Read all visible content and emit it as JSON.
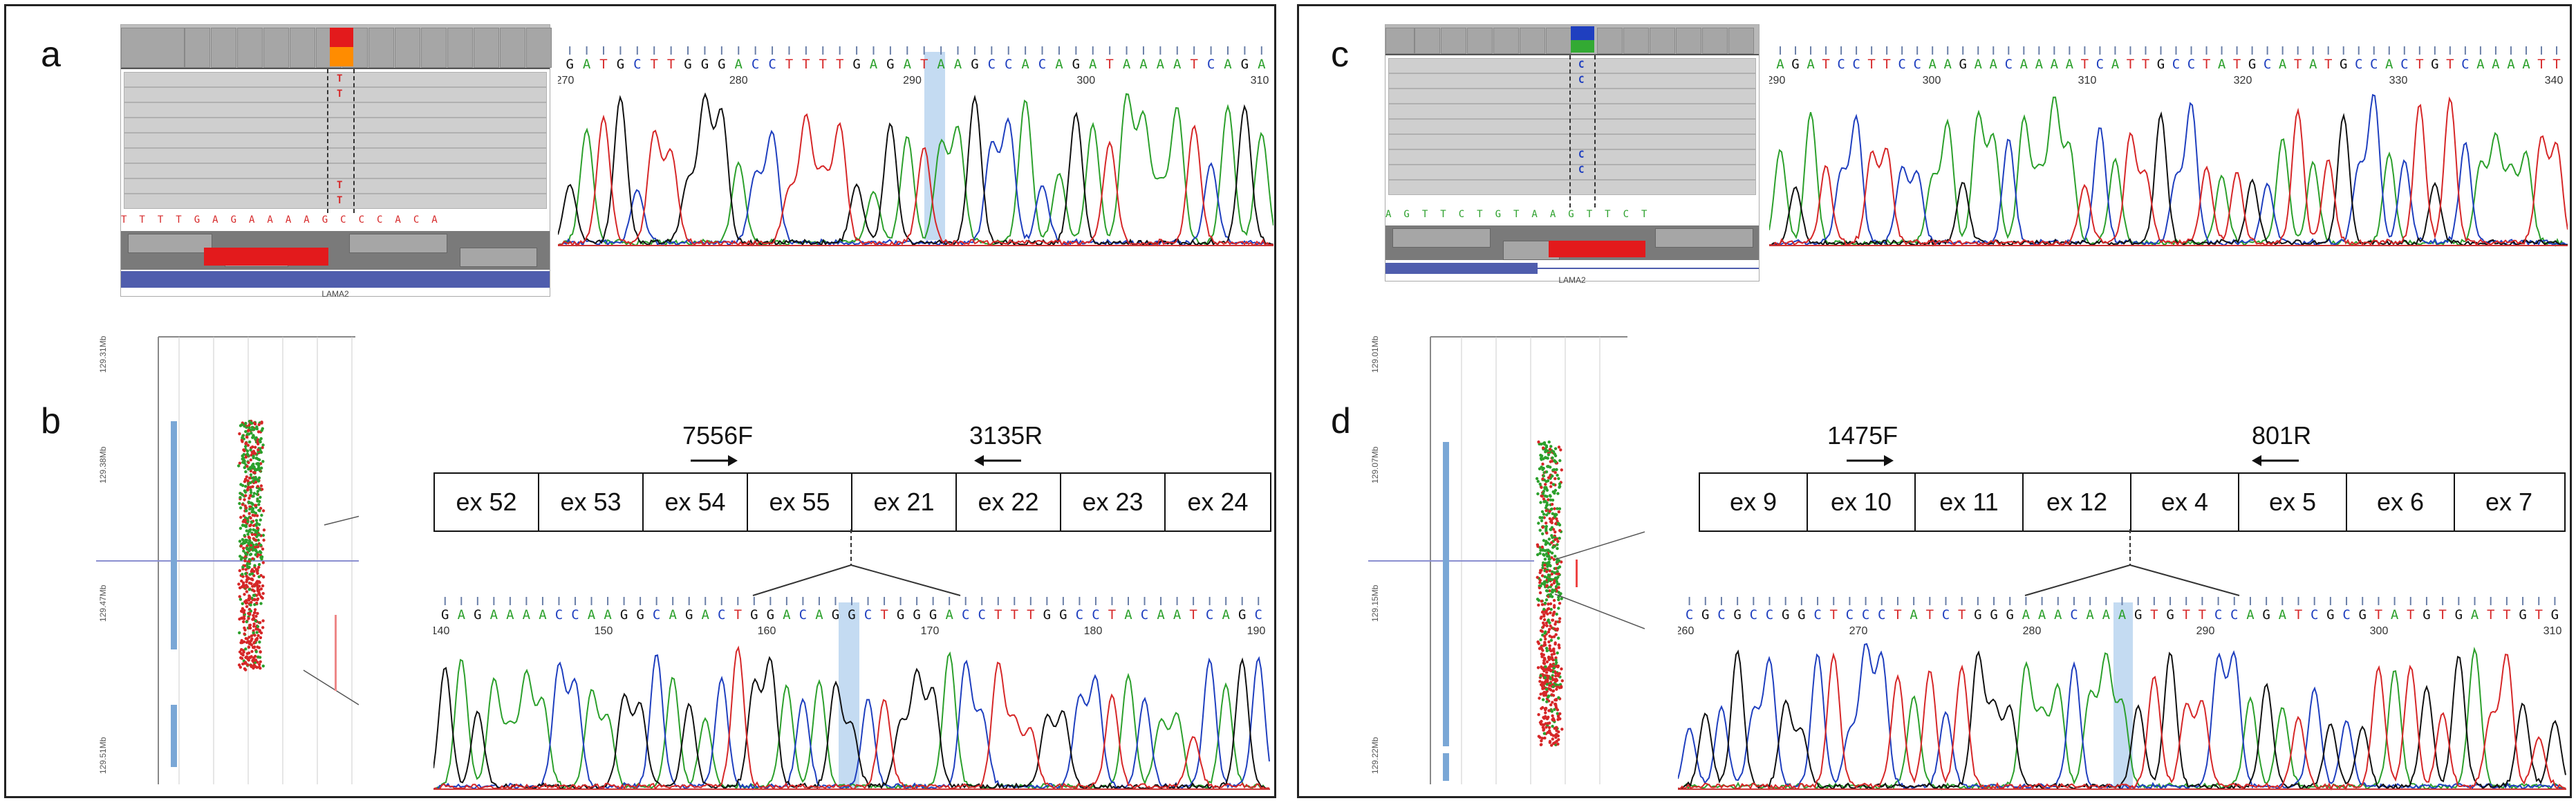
{
  "colors": {
    "A": "#2ca02c",
    "C": "#1f3fbf",
    "G": "#111111",
    "T": "#d62728",
    "highlight": "#9cc3ea",
    "variant_red": "#e31a1c",
    "variant_orange": "#ff8c00",
    "variant_blue": "#1f3fbf",
    "variant_green": "#33aa33"
  },
  "panels": {
    "a": {
      "label": "a",
      "igv": {
        "gene_name": "LAMA2",
        "ref_seq": "TTTTGAGAAAAGCCCACA",
        "alt_allele": "T"
      },
      "trace": {
        "seq": "GATGCTTGGGACCTTTTGAGATAAGCCACAGATAAAATCAGA",
        "ticks": [
          "270",
          "280",
          "290",
          "300",
          "310"
        ]
      }
    },
    "b": {
      "label": "b",
      "exons": [
        "ex 52",
        "ex 53",
        "ex 54",
        "ex 55",
        "ex 21",
        "ex 22",
        "ex 23",
        "ex 24"
      ],
      "primer_forward": "7556F",
      "primer_reverse": "3135R",
      "trace": {
        "seq": "GAGAAAACCAAGGCAGACTGGACAGGCTGGGACCTTTGGCCTACAATCAGC",
        "ticks": [
          "140",
          "150",
          "160",
          "170",
          "180",
          "190"
        ]
      },
      "dotplot": {
        "y_labels": [
          "129.31Mb",
          "129.38Mb",
          "129.47Mb",
          "129.51Mb"
        ]
      }
    },
    "c": {
      "label": "c",
      "igv": {
        "gene_name": "LAMA2",
        "ref_seq": "AGTTCTGTAAGTTCT",
        "alt_allele": "C"
      },
      "trace": {
        "seq": "AGATCCTTCCAAGAACAAAATCATTGCCTATGCATATGCCACTGTCAAAATT",
        "ticks": [
          "290",
          "300",
          "310",
          "320",
          "330",
          "340"
        ]
      }
    },
    "d": {
      "label": "d",
      "exons": [
        "ex 9",
        "ex 10",
        "ex 11",
        "ex 12",
        "ex 4",
        "ex 5",
        "ex 6",
        "ex 7"
      ],
      "primer_forward": "1475F",
      "primer_reverse": "801R",
      "trace": {
        "seq": "CGCGCCGGCTCCCTATCTGGGAAACAAAGTGTTCCAGATCGCGTATGTGATTGTG",
        "ticks": [
          "260",
          "270",
          "280",
          "290",
          "300",
          "310"
        ]
      },
      "dotplot": {
        "y_labels": [
          "129.01Mb",
          "129.07Mb",
          "129.15Mb",
          "129.22Mb"
        ]
      }
    }
  }
}
